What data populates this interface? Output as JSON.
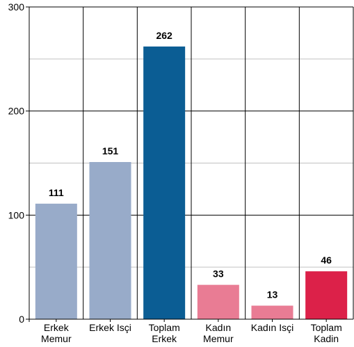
{
  "chart_data": {
    "type": "bar",
    "categories": [
      [
        "Erkek",
        "Memur"
      ],
      [
        "Erkek Isçi"
      ],
      [
        "Toplam",
        "Erkek"
      ],
      [
        "Kadın",
        "Memur"
      ],
      [
        "Kadın Isçi"
      ],
      [
        "Toplam",
        "Kadin"
      ]
    ],
    "values": [
      111,
      151,
      262,
      33,
      13,
      46
    ],
    "data_labels": [
      "111",
      "151",
      "262",
      "33",
      "13",
      "46"
    ],
    "bar_colors": [
      "#98abc9",
      "#98abc9",
      "#0b5d94",
      "#e97c94",
      "#e97c94",
      "#dc2149"
    ],
    "ylim": [
      0,
      300
    ],
    "y_ticks": [
      0,
      100,
      200,
      300
    ],
    "y_tick_labels": [
      "0",
      "100",
      "200",
      "300"
    ],
    "title": "",
    "xlabel": "",
    "ylabel": "",
    "grid": true,
    "minor_grid_color": "#c0c0c0",
    "major_grid_color": "#000000"
  }
}
